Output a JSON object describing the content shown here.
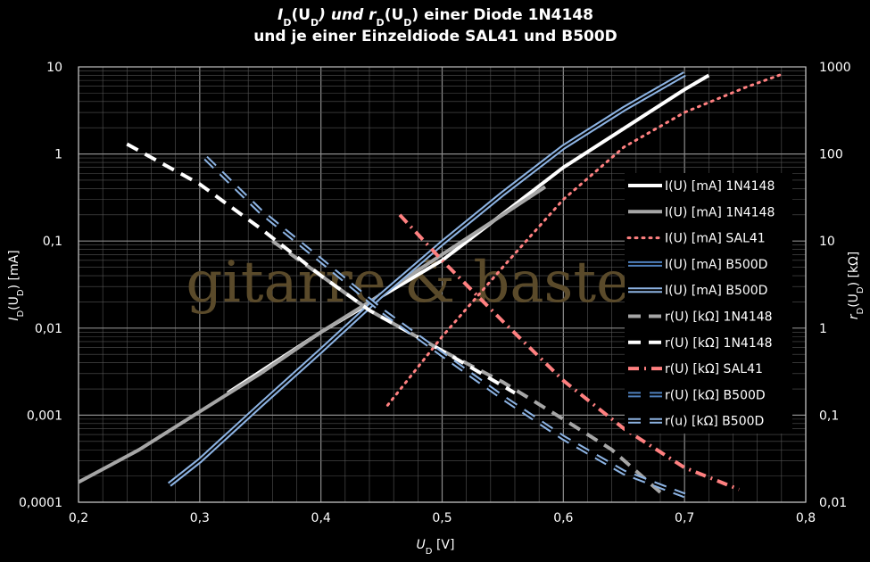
{
  "chart_data": {
    "type": "line",
    "title": {
      "line1": [
        "I",
        "D",
        "(U",
        "D",
        ") und r",
        "D",
        "(U",
        "D",
        ") einer Diode 1N4148"
      ],
      "line2": "und je einer Einzeldiode SAL41 und B500D"
    },
    "xlabel": {
      "main": "U",
      "sub": "D",
      "unit": " [V]"
    },
    "ylabel_left": {
      "main": "I",
      "sub": "D",
      "mid": "(U",
      "sub2": "D",
      "unit": ") [mA]"
    },
    "ylabel_right": {
      "main": "r",
      "sub": "D",
      "mid": "(U",
      "sub2": "D",
      "unit": ") [kΩ]"
    },
    "xlim": [
      0.2,
      0.8
    ],
    "ylim_left": [
      0.0001,
      10
    ],
    "ylim_right": [
      0.01,
      1000
    ],
    "y_scale": "log",
    "grid": true,
    "legend_position": "right",
    "x_ticks": [
      "0,2",
      "0,3",
      "0,4",
      "0,5",
      "0,6",
      "0,7",
      "0,8"
    ],
    "y_left_ticks": [
      "10",
      "1",
      "0,1",
      "0,01",
      "0,001",
      "0,0001"
    ],
    "y_right_ticks": [
      "1000",
      "100",
      "10",
      "1",
      "0,1",
      "0,01"
    ],
    "watermark": "gitarre & basteln",
    "series": [
      {
        "name": "I(U) [mA] 1N4148",
        "axis": "left",
        "color": "#ffffff",
        "style": "solid",
        "width": 4,
        "x": [
          0.323,
          0.4,
          0.5,
          0.6,
          0.7,
          0.72
        ],
        "y": [
          0.0018,
          0.009,
          0.06,
          0.7,
          5.5,
          8
        ]
      },
      {
        "name": "I(U) [mA] 1N4148",
        "axis": "left",
        "color": "#a6a6a6",
        "style": "solid",
        "width": 4,
        "x": [
          0.2,
          0.25,
          0.3,
          0.35,
          0.4,
          0.44,
          0.5,
          0.55,
          0.585
        ],
        "y": [
          0.00017,
          0.0004,
          0.0011,
          0.003,
          0.009,
          0.02,
          0.07,
          0.2,
          0.42
        ]
      },
      {
        "name": "I(U) [mA] SAL41",
        "axis": "left",
        "color": "#ff8080",
        "style": "dotted",
        "width": 3,
        "x": [
          0.455,
          0.5,
          0.55,
          0.6,
          0.65,
          0.7,
          0.75,
          0.78
        ],
        "y": [
          0.0013,
          0.008,
          0.05,
          0.3,
          1.2,
          3,
          5.8,
          8.2
        ]
      },
      {
        "name": "I(U) [mA] B500D",
        "axis": "left",
        "color": "#4f81bd",
        "style": "double",
        "width": 3,
        "x": [
          0.275,
          0.3,
          0.35,
          0.4,
          0.45,
          0.5,
          0.55,
          0.6,
          0.65,
          0.7
        ],
        "y": [
          0.00016,
          0.0003,
          0.0013,
          0.0055,
          0.024,
          0.095,
          0.35,
          1.2,
          3.3,
          8.3
        ]
      },
      {
        "name": "I(U) [mA] B500D",
        "axis": "left",
        "color": "#8db3e2",
        "style": "double",
        "width": 3,
        "x": [
          0.275,
          0.3,
          0.35,
          0.4,
          0.45,
          0.5,
          0.55,
          0.6,
          0.65,
          0.7
        ],
        "y": [
          0.00016,
          0.0003,
          0.0013,
          0.0055,
          0.024,
          0.095,
          0.35,
          1.2,
          3.3,
          8.3
        ]
      },
      {
        "name": "r(U) [kΩ] 1N4148",
        "axis": "right",
        "color": "#a6a6a6",
        "style": "dashed",
        "width": 4,
        "x": [
          0.36,
          0.4,
          0.44,
          0.5,
          0.55,
          0.6,
          0.64,
          0.68
        ],
        "y": [
          10,
          4,
          1.6,
          0.55,
          0.24,
          0.09,
          0.04,
          0.013
        ]
      },
      {
        "name": "r(U) [kΩ] 1N4148",
        "axis": "right",
        "color": "#ffffff",
        "style": "dashed",
        "width": 4,
        "x": [
          0.24,
          0.3,
          0.35,
          0.4,
          0.44,
          0.5,
          0.56
        ],
        "y": [
          130,
          45,
          14,
          4,
          1.6,
          0.55,
          0.18
        ]
      },
      {
        "name": "r(U) [kΩ] SAL41",
        "axis": "right",
        "color": "#ff8080",
        "style": "dashdot",
        "width": 4,
        "x": [
          0.465,
          0.5,
          0.55,
          0.6,
          0.65,
          0.7,
          0.745
        ],
        "y": [
          20,
          6,
          1.2,
          0.25,
          0.07,
          0.025,
          0.014
        ]
      },
      {
        "name": "r(U) [kΩ] B500D",
        "axis": "right",
        "color": "#4f81bd",
        "style": "dashdouble",
        "width": 3,
        "x": [
          0.305,
          0.35,
          0.4,
          0.45,
          0.5,
          0.55,
          0.6,
          0.65,
          0.7
        ],
        "y": [
          90,
          22,
          6,
          1.6,
          0.5,
          0.16,
          0.055,
          0.022,
          0.012
        ]
      },
      {
        "name": "r(u) [kΩ] B500D",
        "axis": "right",
        "color": "#8db3e2",
        "style": "dashdouble",
        "width": 3,
        "x": [
          0.305,
          0.35,
          0.4,
          0.45,
          0.5,
          0.55,
          0.6,
          0.65,
          0.7
        ],
        "y": [
          90,
          22,
          6,
          1.6,
          0.5,
          0.16,
          0.055,
          0.022,
          0.012
        ]
      }
    ]
  }
}
